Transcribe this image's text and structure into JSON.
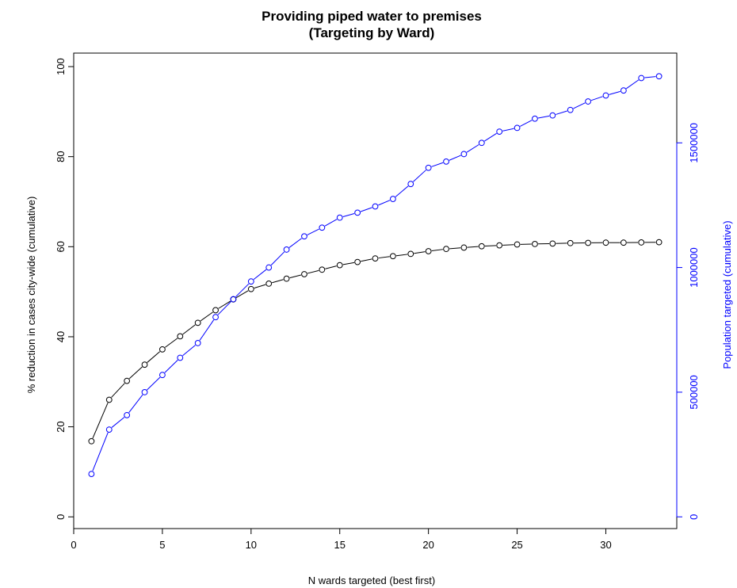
{
  "chart_data": {
    "type": "line",
    "title": "Providing piped water to premises",
    "subtitle": "(Targeting by Ward)",
    "xlabel": "N wards targeted (best first)",
    "ylabel": "% reduction in cases city-wide (cumulative)",
    "y2label": "Population targeted (cumulative)",
    "xlim": [
      0,
      34
    ],
    "ylim": [
      -2.6,
      103
    ],
    "y2lim": [
      -47000,
      1860000
    ],
    "x_ticks": [
      0,
      5,
      10,
      15,
      20,
      25,
      30
    ],
    "y_ticks": [
      0,
      20,
      40,
      60,
      80,
      100
    ],
    "y2_ticks": [
      0,
      500000,
      1000000,
      1500000
    ],
    "grid": false,
    "legend": "none",
    "x": [
      1,
      2,
      3,
      4,
      5,
      6,
      7,
      8,
      9,
      10,
      11,
      12,
      13,
      14,
      15,
      16,
      17,
      18,
      19,
      20,
      21,
      22,
      23,
      24,
      25,
      26,
      27,
      28,
      29,
      30,
      31,
      32,
      33
    ],
    "series": [
      {
        "axis": "left",
        "color": "#000000",
        "values": [
          16.8,
          26.0,
          30.2,
          33.8,
          37.2,
          40.1,
          43.1,
          45.9,
          48.3,
          50.6,
          51.8,
          52.9,
          53.9,
          54.9,
          55.9,
          56.6,
          57.4,
          57.9,
          58.4,
          59.0,
          59.5,
          59.8,
          60.1,
          60.3,
          60.5,
          60.6,
          60.7,
          60.8,
          60.85,
          60.9,
          60.9,
          60.95,
          61.0
        ]
      },
      {
        "axis": "right",
        "color": "#0000ff",
        "values": [
          172000,
          350000,
          408000,
          500000,
          569000,
          638000,
          697000,
          801000,
          873000,
          944000,
          1000000,
          1072000,
          1125000,
          1160000,
          1200000,
          1220000,
          1245000,
          1275000,
          1335000,
          1400000,
          1425000,
          1455000,
          1500000,
          1545000,
          1560000,
          1597000,
          1610000,
          1632000,
          1666000,
          1690000,
          1710000,
          1760000,
          1767000
        ]
      }
    ]
  }
}
